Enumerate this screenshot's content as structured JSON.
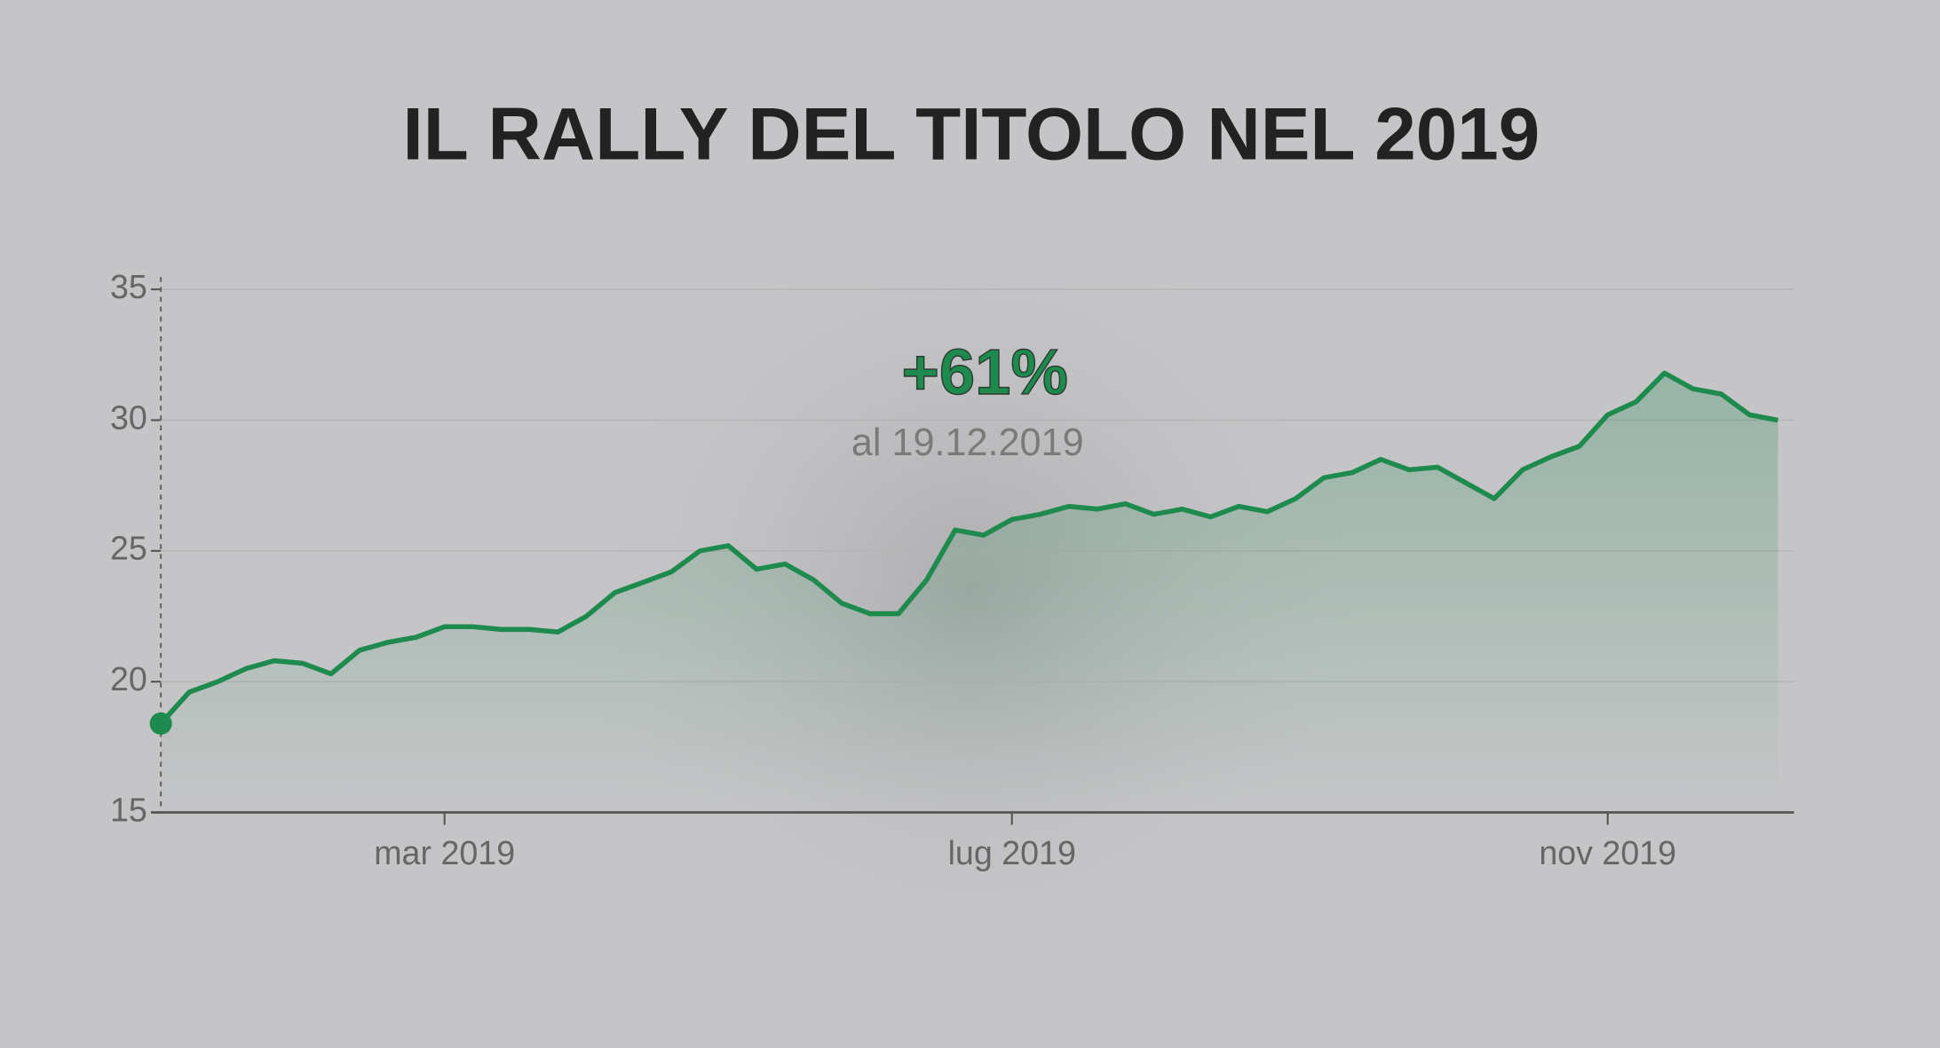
{
  "chart_data": {
    "type": "line",
    "title": "IL RALLY DEL TITOLO NEL 2019",
    "annotations": [
      "+61%",
      "al 19.12.2019"
    ],
    "categories": [
      null,
      null,
      null,
      null,
      null,
      null,
      null,
      null,
      null,
      null,
      "mar 2019",
      null,
      null,
      null,
      null,
      null,
      null,
      null,
      null,
      null,
      null,
      null,
      null,
      null,
      null,
      null,
      null,
      null,
      null,
      null,
      "lug 2019",
      null,
      null,
      null,
      null,
      null,
      null,
      null,
      null,
      null,
      null,
      null,
      null,
      null,
      null,
      null,
      null,
      null,
      null,
      null,
      null,
      "nov 2019",
      null,
      null,
      null,
      null,
      null,
      null
    ],
    "series": [
      {
        "color": "#1e8a4e",
        "values": [
          18.4,
          19.6,
          20.0,
          20.5,
          20.8,
          20.7,
          20.3,
          21.2,
          21.5,
          21.7,
          22.1,
          22.1,
          22.0,
          22.0,
          21.9,
          22.5,
          23.4,
          23.8,
          24.2,
          25.0,
          25.2,
          24.3,
          24.5,
          23.9,
          23.0,
          22.6,
          22.6,
          23.9,
          25.8,
          25.6,
          26.2,
          26.4,
          26.7,
          26.6,
          26.8,
          26.4,
          26.6,
          26.3,
          26.7,
          26.5,
          27.0,
          27.8,
          28.0,
          28.5,
          28.1,
          28.2,
          27.6,
          27.0,
          28.1,
          28.6,
          29.0,
          30.2,
          30.7,
          31.8,
          31.2,
          31.0,
          30.2,
          30.0
        ]
      }
    ],
    "ylim": [
      15,
      35
    ],
    "yticks": [
      15,
      20,
      25,
      30,
      35
    ],
    "grid": true
  }
}
